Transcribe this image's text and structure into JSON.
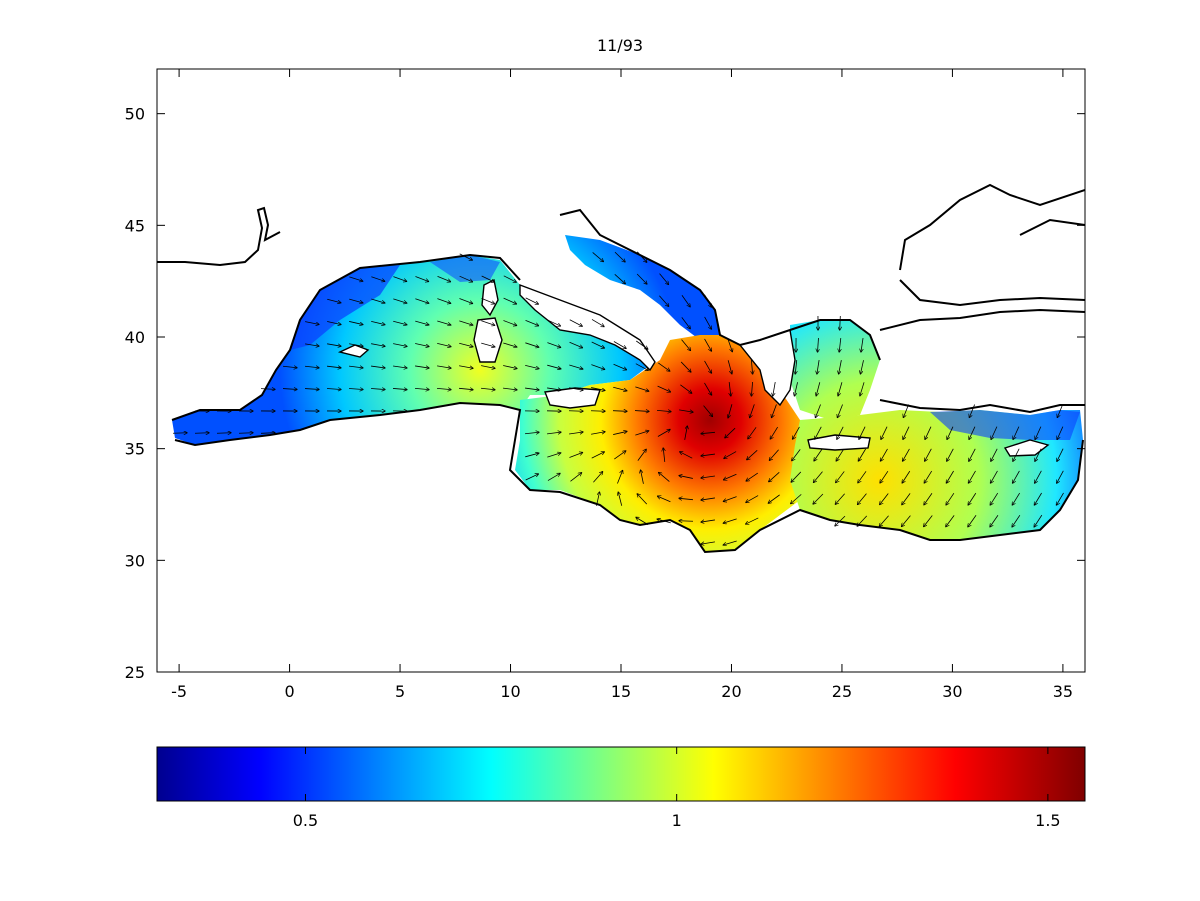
{
  "map": {
    "title": "11/93",
    "region": "Mediterranean Sea",
    "x_axis": {
      "ticks": [
        -5,
        0,
        5,
        10,
        15,
        20,
        25,
        30,
        35
      ],
      "range": [
        -6,
        36
      ]
    },
    "y_axis": {
      "ticks": [
        25,
        30,
        35,
        40,
        45,
        50
      ],
      "range": [
        25,
        52
      ]
    },
    "field_colormap": "jet",
    "vector_field": "arrows",
    "hotspot": {
      "lon": 19,
      "lat": 36.5,
      "value": 1.5
    }
  },
  "colorbar": {
    "range": [
      0.3,
      1.55
    ],
    "tick_labels": [
      {
        "value": 0.5,
        "label": "0.5"
      },
      {
        "value": 1,
        "label": "1"
      },
      {
        "value": 1.5,
        "label": "1.5"
      }
    ]
  }
}
